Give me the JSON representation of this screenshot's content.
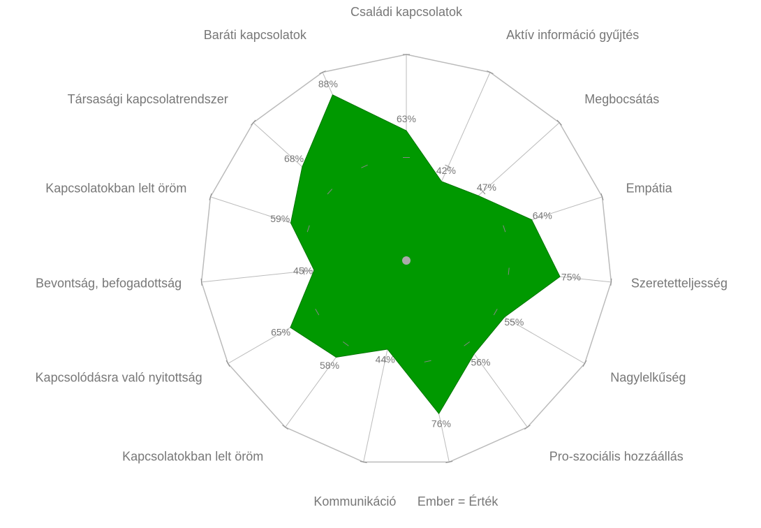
{
  "chart_data": {
    "type": "radar",
    "categories": [
      "Családi kapcsolatok",
      "Aktív információ gyűjtés",
      "Megbocsátás",
      "Empátia",
      "Szeretetteljesség",
      "Nagylelkűség",
      "Pro-szociális hozzáállás",
      "Ember = Érték",
      "Kommunikáció",
      "Kapcsolatokban lelt öröm",
      "Kapcsolódásra való nyitottság",
      "Bevontság, befogadottság",
      "Kapcsolatokban lelt öröm",
      "Társasági kapcsolatrendszer",
      "Baráti kapcsolatok"
    ],
    "values": [
      63,
      42,
      47,
      64,
      75,
      55,
      56,
      76,
      44,
      58,
      65,
      45,
      59,
      68,
      88
    ],
    "value_labels": [
      "63%",
      "42%",
      "47%",
      "64%",
      "75%",
      "55%",
      "56%",
      "76%",
      "44%",
      "58%",
      "65%",
      "45%",
      "59%",
      "68%",
      "88%"
    ],
    "color": "#009900",
    "rlim": [
      0,
      100
    ],
    "rticks": [
      50,
      100
    ]
  }
}
